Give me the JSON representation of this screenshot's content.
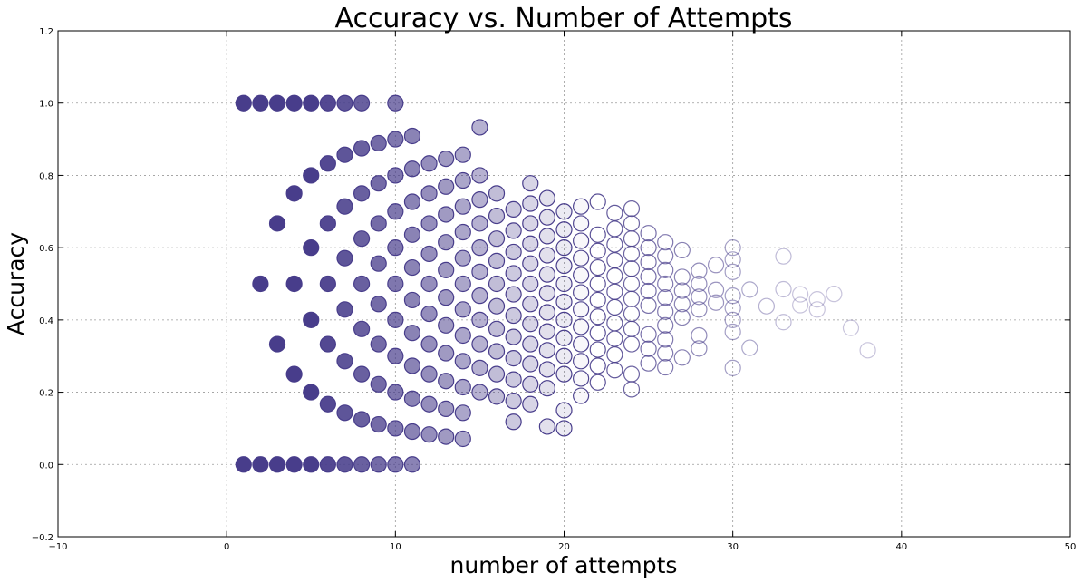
{
  "chart_data": {
    "type": "scatter",
    "title": "Accuracy vs. Number of Attempts",
    "xlabel": "number of attempts",
    "ylabel": "Accuracy",
    "xlim": [
      -10,
      50
    ],
    "ylim": [
      -0.2,
      1.2
    ],
    "xticks": [
      -10,
      0,
      10,
      20,
      30,
      40,
      50
    ],
    "yticks": [
      -0.2,
      0.0,
      0.2,
      0.4,
      0.6,
      0.8,
      1.0,
      1.2
    ],
    "xtick_labels": [
      "−10",
      "0",
      "10",
      "20",
      "30",
      "40",
      "50"
    ],
    "ytick_labels": [
      "−0.2",
      "0.0",
      "0.2",
      "0.4",
      "0.6",
      "0.8",
      "1.0",
      "1.2"
    ],
    "grid": true,
    "marker": "circle",
    "color": "#483d8b",
    "encoding_note": "Each point plots accuracy = k/n for n attempts; marker fill opacity fades as n grows.",
    "points": [
      {
        "x": 1,
        "y": 1.0
      },
      {
        "x": 1,
        "y": 0.0
      },
      {
        "x": 2,
        "y": 1.0
      },
      {
        "x": 2,
        "y": 0.5
      },
      {
        "x": 2,
        "y": 0.0
      },
      {
        "x": 3,
        "y": 1.0
      },
      {
        "x": 3,
        "y": 0.667
      },
      {
        "x": 3,
        "y": 0.333
      },
      {
        "x": 3,
        "y": 0.0
      },
      {
        "x": 4,
        "y": 1.0
      },
      {
        "x": 4,
        "y": 0.75
      },
      {
        "x": 4,
        "y": 0.5
      },
      {
        "x": 4,
        "y": 0.25
      },
      {
        "x": 4,
        "y": 0.0
      },
      {
        "x": 5,
        "y": 1.0
      },
      {
        "x": 5,
        "y": 0.8
      },
      {
        "x": 5,
        "y": 0.6
      },
      {
        "x": 5,
        "y": 0.4
      },
      {
        "x": 5,
        "y": 0.2
      },
      {
        "x": 5,
        "y": 0.0
      },
      {
        "x": 6,
        "y": 1.0
      },
      {
        "x": 6,
        "y": 0.833
      },
      {
        "x": 6,
        "y": 0.667
      },
      {
        "x": 6,
        "y": 0.5
      },
      {
        "x": 6,
        "y": 0.333
      },
      {
        "x": 6,
        "y": 0.167
      },
      {
        "x": 6,
        "y": 0.0
      },
      {
        "x": 7,
        "y": 1.0
      },
      {
        "x": 7,
        "y": 0.857
      },
      {
        "x": 7,
        "y": 0.714
      },
      {
        "x": 7,
        "y": 0.571
      },
      {
        "x": 7,
        "y": 0.429
      },
      {
        "x": 7,
        "y": 0.286
      },
      {
        "x": 7,
        "y": 0.143
      },
      {
        "x": 7,
        "y": 0.0
      },
      {
        "x": 8,
        "y": 1.0
      },
      {
        "x": 8,
        "y": 0.875
      },
      {
        "x": 8,
        "y": 0.75
      },
      {
        "x": 8,
        "y": 0.625
      },
      {
        "x": 8,
        "y": 0.5
      },
      {
        "x": 8,
        "y": 0.375
      },
      {
        "x": 8,
        "y": 0.25
      },
      {
        "x": 8,
        "y": 0.125
      },
      {
        "x": 8,
        "y": 0.0
      },
      {
        "x": 9,
        "y": 0.889
      },
      {
        "x": 9,
        "y": 0.778
      },
      {
        "x": 9,
        "y": 0.667
      },
      {
        "x": 9,
        "y": 0.556
      },
      {
        "x": 9,
        "y": 0.444
      },
      {
        "x": 9,
        "y": 0.333
      },
      {
        "x": 9,
        "y": 0.222
      },
      {
        "x": 9,
        "y": 0.111
      },
      {
        "x": 9,
        "y": 0.0
      },
      {
        "x": 10,
        "y": 1.0
      },
      {
        "x": 10,
        "y": 0.9
      },
      {
        "x": 10,
        "y": 0.8
      },
      {
        "x": 10,
        "y": 0.7
      },
      {
        "x": 10,
        "y": 0.6
      },
      {
        "x": 10,
        "y": 0.5
      },
      {
        "x": 10,
        "y": 0.4
      },
      {
        "x": 10,
        "y": 0.3
      },
      {
        "x": 10,
        "y": 0.2
      },
      {
        "x": 10,
        "y": 0.1
      },
      {
        "x": 10,
        "y": 0.0
      },
      {
        "x": 11,
        "y": 0.909
      },
      {
        "x": 11,
        "y": 0.818
      },
      {
        "x": 11,
        "y": 0.727
      },
      {
        "x": 11,
        "y": 0.636
      },
      {
        "x": 11,
        "y": 0.545
      },
      {
        "x": 11,
        "y": 0.455
      },
      {
        "x": 11,
        "y": 0.364
      },
      {
        "x": 11,
        "y": 0.273
      },
      {
        "x": 11,
        "y": 0.182
      },
      {
        "x": 11,
        "y": 0.091
      },
      {
        "x": 11,
        "y": 0.0
      },
      {
        "x": 12,
        "y": 0.833
      },
      {
        "x": 12,
        "y": 0.75
      },
      {
        "x": 12,
        "y": 0.667
      },
      {
        "x": 12,
        "y": 0.583
      },
      {
        "x": 12,
        "y": 0.5
      },
      {
        "x": 12,
        "y": 0.417
      },
      {
        "x": 12,
        "y": 0.333
      },
      {
        "x": 12,
        "y": 0.25
      },
      {
        "x": 12,
        "y": 0.167
      },
      {
        "x": 12,
        "y": 0.083
      },
      {
        "x": 13,
        "y": 0.846
      },
      {
        "x": 13,
        "y": 0.769
      },
      {
        "x": 13,
        "y": 0.692
      },
      {
        "x": 13,
        "y": 0.615
      },
      {
        "x": 13,
        "y": 0.538
      },
      {
        "x": 13,
        "y": 0.462
      },
      {
        "x": 13,
        "y": 0.385
      },
      {
        "x": 13,
        "y": 0.308
      },
      {
        "x": 13,
        "y": 0.231
      },
      {
        "x": 13,
        "y": 0.154
      },
      {
        "x": 13,
        "y": 0.077
      },
      {
        "x": 14,
        "y": 0.857
      },
      {
        "x": 14,
        "y": 0.786
      },
      {
        "x": 14,
        "y": 0.714
      },
      {
        "x": 14,
        "y": 0.643
      },
      {
        "x": 14,
        "y": 0.571
      },
      {
        "x": 14,
        "y": 0.5
      },
      {
        "x": 14,
        "y": 0.429
      },
      {
        "x": 14,
        "y": 0.357
      },
      {
        "x": 14,
        "y": 0.286
      },
      {
        "x": 14,
        "y": 0.214
      },
      {
        "x": 14,
        "y": 0.143
      },
      {
        "x": 14,
        "y": 0.071
      },
      {
        "x": 15,
        "y": 0.933
      },
      {
        "x": 15,
        "y": 0.8
      },
      {
        "x": 15,
        "y": 0.733
      },
      {
        "x": 15,
        "y": 0.667
      },
      {
        "x": 15,
        "y": 0.6
      },
      {
        "x": 15,
        "y": 0.533
      },
      {
        "x": 15,
        "y": 0.467
      },
      {
        "x": 15,
        "y": 0.4
      },
      {
        "x": 15,
        "y": 0.333
      },
      {
        "x": 15,
        "y": 0.267
      },
      {
        "x": 15,
        "y": 0.2
      },
      {
        "x": 16,
        "y": 0.75
      },
      {
        "x": 16,
        "y": 0.688
      },
      {
        "x": 16,
        "y": 0.625
      },
      {
        "x": 16,
        "y": 0.563
      },
      {
        "x": 16,
        "y": 0.5
      },
      {
        "x": 16,
        "y": 0.438
      },
      {
        "x": 16,
        "y": 0.375
      },
      {
        "x": 16,
        "y": 0.313
      },
      {
        "x": 16,
        "y": 0.25
      },
      {
        "x": 16,
        "y": 0.188
      },
      {
        "x": 17,
        "y": 0.706
      },
      {
        "x": 17,
        "y": 0.647
      },
      {
        "x": 17,
        "y": 0.588
      },
      {
        "x": 17,
        "y": 0.529
      },
      {
        "x": 17,
        "y": 0.471
      },
      {
        "x": 17,
        "y": 0.412
      },
      {
        "x": 17,
        "y": 0.353
      },
      {
        "x": 17,
        "y": 0.294
      },
      {
        "x": 17,
        "y": 0.235
      },
      {
        "x": 17,
        "y": 0.176
      },
      {
        "x": 17,
        "y": 0.118
      },
      {
        "x": 18,
        "y": 0.778
      },
      {
        "x": 18,
        "y": 0.722
      },
      {
        "x": 18,
        "y": 0.667
      },
      {
        "x": 18,
        "y": 0.611
      },
      {
        "x": 18,
        "y": 0.556
      },
      {
        "x": 18,
        "y": 0.5
      },
      {
        "x": 18,
        "y": 0.444
      },
      {
        "x": 18,
        "y": 0.389
      },
      {
        "x": 18,
        "y": 0.333
      },
      {
        "x": 18,
        "y": 0.278
      },
      {
        "x": 18,
        "y": 0.222
      },
      {
        "x": 18,
        "y": 0.167
      },
      {
        "x": 19,
        "y": 0.737
      },
      {
        "x": 19,
        "y": 0.684
      },
      {
        "x": 19,
        "y": 0.632
      },
      {
        "x": 19,
        "y": 0.579
      },
      {
        "x": 19,
        "y": 0.526
      },
      {
        "x": 19,
        "y": 0.474
      },
      {
        "x": 19,
        "y": 0.421
      },
      {
        "x": 19,
        "y": 0.368
      },
      {
        "x": 19,
        "y": 0.316
      },
      {
        "x": 19,
        "y": 0.263
      },
      {
        "x": 19,
        "y": 0.211
      },
      {
        "x": 19,
        "y": 0.105
      },
      {
        "x": 20,
        "y": 0.7
      },
      {
        "x": 20,
        "y": 0.65
      },
      {
        "x": 20,
        "y": 0.6
      },
      {
        "x": 20,
        "y": 0.55
      },
      {
        "x": 20,
        "y": 0.5
      },
      {
        "x": 20,
        "y": 0.45
      },
      {
        "x": 20,
        "y": 0.4
      },
      {
        "x": 20,
        "y": 0.35
      },
      {
        "x": 20,
        "y": 0.3
      },
      {
        "x": 20,
        "y": 0.25
      },
      {
        "x": 20,
        "y": 0.15
      },
      {
        "x": 20,
        "y": 0.1
      },
      {
        "x": 21,
        "y": 0.714
      },
      {
        "x": 21,
        "y": 0.667
      },
      {
        "x": 21,
        "y": 0.619
      },
      {
        "x": 21,
        "y": 0.571
      },
      {
        "x": 21,
        "y": 0.524
      },
      {
        "x": 21,
        "y": 0.476
      },
      {
        "x": 21,
        "y": 0.429
      },
      {
        "x": 21,
        "y": 0.381
      },
      {
        "x": 21,
        "y": 0.333
      },
      {
        "x": 21,
        "y": 0.286
      },
      {
        "x": 21,
        "y": 0.238
      },
      {
        "x": 21,
        "y": 0.19
      },
      {
        "x": 22,
        "y": 0.727
      },
      {
        "x": 22,
        "y": 0.636
      },
      {
        "x": 22,
        "y": 0.591
      },
      {
        "x": 22,
        "y": 0.545
      },
      {
        "x": 22,
        "y": 0.5
      },
      {
        "x": 22,
        "y": 0.455
      },
      {
        "x": 22,
        "y": 0.409
      },
      {
        "x": 22,
        "y": 0.364
      },
      {
        "x": 22,
        "y": 0.318
      },
      {
        "x": 22,
        "y": 0.273
      },
      {
        "x": 22,
        "y": 0.227
      },
      {
        "x": 23,
        "y": 0.696
      },
      {
        "x": 23,
        "y": 0.652
      },
      {
        "x": 23,
        "y": 0.609
      },
      {
        "x": 23,
        "y": 0.565
      },
      {
        "x": 23,
        "y": 0.522
      },
      {
        "x": 23,
        "y": 0.478
      },
      {
        "x": 23,
        "y": 0.435
      },
      {
        "x": 23,
        "y": 0.391
      },
      {
        "x": 23,
        "y": 0.348
      },
      {
        "x": 23,
        "y": 0.304
      },
      {
        "x": 23,
        "y": 0.261
      },
      {
        "x": 24,
        "y": 0.708
      },
      {
        "x": 24,
        "y": 0.667
      },
      {
        "x": 24,
        "y": 0.625
      },
      {
        "x": 24,
        "y": 0.583
      },
      {
        "x": 24,
        "y": 0.542
      },
      {
        "x": 24,
        "y": 0.5
      },
      {
        "x": 24,
        "y": 0.458
      },
      {
        "x": 24,
        "y": 0.417
      },
      {
        "x": 24,
        "y": 0.375
      },
      {
        "x": 24,
        "y": 0.333
      },
      {
        "x": 24,
        "y": 0.25
      },
      {
        "x": 24,
        "y": 0.208
      },
      {
        "x": 25,
        "y": 0.64
      },
      {
        "x": 25,
        "y": 0.6
      },
      {
        "x": 25,
        "y": 0.56
      },
      {
        "x": 25,
        "y": 0.52
      },
      {
        "x": 25,
        "y": 0.48
      },
      {
        "x": 25,
        "y": 0.44
      },
      {
        "x": 25,
        "y": 0.36
      },
      {
        "x": 25,
        "y": 0.32
      },
      {
        "x": 25,
        "y": 0.28
      },
      {
        "x": 26,
        "y": 0.615
      },
      {
        "x": 26,
        "y": 0.577
      },
      {
        "x": 26,
        "y": 0.538
      },
      {
        "x": 26,
        "y": 0.5
      },
      {
        "x": 26,
        "y": 0.462
      },
      {
        "x": 26,
        "y": 0.423
      },
      {
        "x": 26,
        "y": 0.385
      },
      {
        "x": 26,
        "y": 0.346
      },
      {
        "x": 26,
        "y": 0.308
      },
      {
        "x": 26,
        "y": 0.269
      },
      {
        "x": 27,
        "y": 0.593
      },
      {
        "x": 27,
        "y": 0.519
      },
      {
        "x": 27,
        "y": 0.481
      },
      {
        "x": 27,
        "y": 0.444
      },
      {
        "x": 27,
        "y": 0.407
      },
      {
        "x": 27,
        "y": 0.296
      },
      {
        "x": 28,
        "y": 0.536
      },
      {
        "x": 28,
        "y": 0.5
      },
      {
        "x": 28,
        "y": 0.464
      },
      {
        "x": 28,
        "y": 0.429
      },
      {
        "x": 28,
        "y": 0.357
      },
      {
        "x": 28,
        "y": 0.321
      },
      {
        "x": 29,
        "y": 0.552
      },
      {
        "x": 29,
        "y": 0.483
      },
      {
        "x": 29,
        "y": 0.448
      },
      {
        "x": 30,
        "y": 0.6
      },
      {
        "x": 30,
        "y": 0.567
      },
      {
        "x": 30,
        "y": 0.533
      },
      {
        "x": 30,
        "y": 0.467
      },
      {
        "x": 30,
        "y": 0.433
      },
      {
        "x": 30,
        "y": 0.4
      },
      {
        "x": 30,
        "y": 0.367
      },
      {
        "x": 30,
        "y": 0.267
      },
      {
        "x": 31,
        "y": 0.484
      },
      {
        "x": 31,
        "y": 0.323
      },
      {
        "x": 32,
        "y": 0.438
      },
      {
        "x": 33,
        "y": 0.576
      },
      {
        "x": 33,
        "y": 0.485
      },
      {
        "x": 33,
        "y": 0.394
      },
      {
        "x": 34,
        "y": 0.471
      },
      {
        "x": 34,
        "y": 0.441
      },
      {
        "x": 35,
        "y": 0.457
      },
      {
        "x": 35,
        "y": 0.429
      },
      {
        "x": 36,
        "y": 0.472
      },
      {
        "x": 37,
        "y": 0.378
      },
      {
        "x": 38,
        "y": 0.316
      }
    ]
  }
}
